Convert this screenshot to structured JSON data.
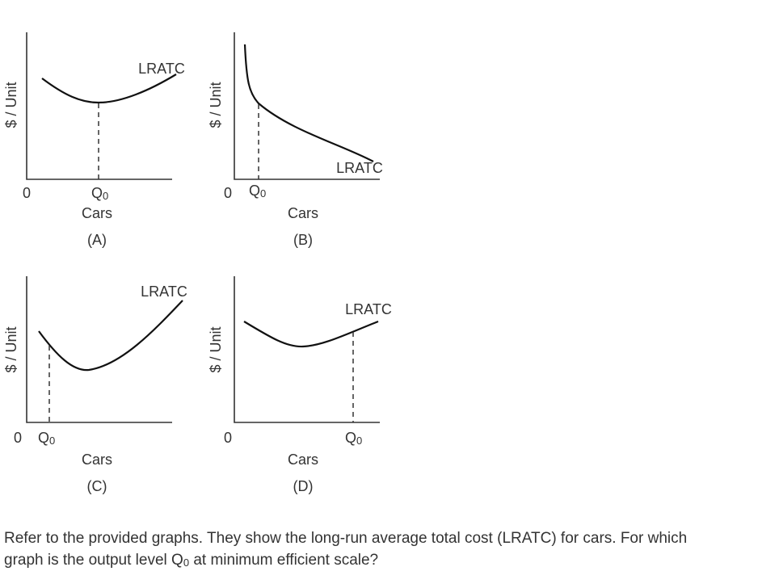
{
  "graphs": [
    {
      "y_axis": "$ / Unit",
      "origin": "0",
      "q_symbol": "Q",
      "q_subscript": "0",
      "x_axis": "Cars",
      "label": "(A)",
      "curve": "LRATC"
    },
    {
      "y_axis": "$ / Unit",
      "origin": "0",
      "q_symbol": "Q",
      "q_subscript": "0",
      "x_axis": "Cars",
      "label": "(B)",
      "curve": "LRATC"
    },
    {
      "y_axis": "$ / Unit",
      "origin": "0",
      "q_symbol": "Q",
      "q_subscript": "0",
      "x_axis": "Cars",
      "label": "(C)",
      "curve": "LRATC"
    },
    {
      "y_axis": "$ / Unit",
      "origin": "0",
      "q_symbol": "Q",
      "q_subscript": "0",
      "x_axis": "Cars",
      "label": "(D)",
      "curve": "LRATC"
    }
  ],
  "question": {
    "line1": "Refer to the provided graphs. They show the long-run average total cost (LRATC) for cars. For which",
    "line2_before": "graph is the output level",
    "q_symbol": "Q",
    "q_subscript": "0",
    "line2_after": "at minimum efficient scale?"
  }
}
